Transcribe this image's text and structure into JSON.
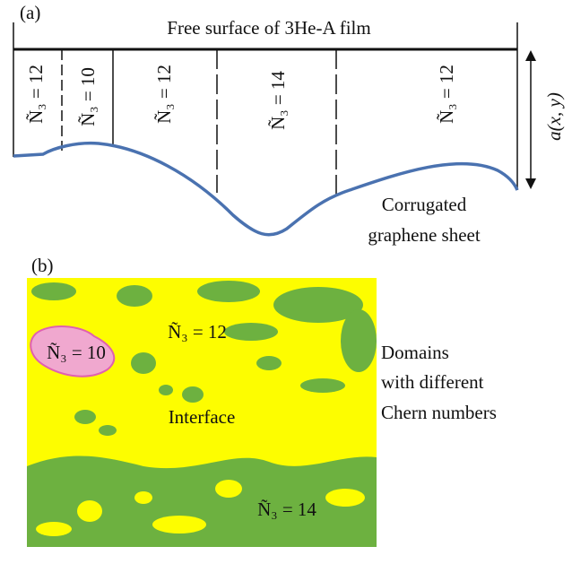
{
  "panel_a": {
    "label": "(a)",
    "top_label": "Free surface of 3He-A film",
    "domain_labels": [
      "Ñ₃ = 12",
      "Ñ₃ = 10",
      "Ñ₃ = 12",
      "Ñ₃ = 14",
      "Ñ₃ = 12"
    ],
    "thickness_label": "a(x, y)",
    "sheet_label": [
      "Corrugated",
      "graphene sheet"
    ]
  },
  "panel_b": {
    "label": "(b)",
    "domain_labels": [
      "Ñ₃ = 10",
      "Ñ₃ = 12",
      "Ñ₃ = 14"
    ],
    "interface_label": "Interface",
    "side_text": [
      "Domains",
      "with different",
      "Chern numbers"
    ]
  }
}
